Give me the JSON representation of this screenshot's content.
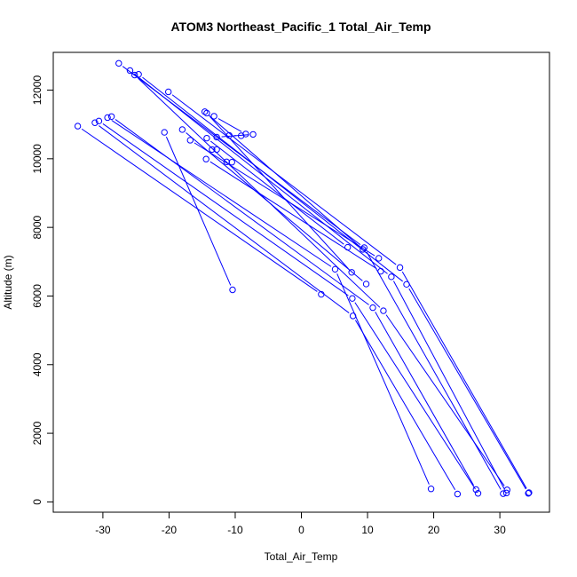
{
  "chart_data": {
    "type": "line",
    "title": "ATOM3 Northeast_Pacific_1 Total_Air_Temp",
    "xlabel": "Total_Air_Temp",
    "ylabel": "Altitude (m)",
    "xlim": [
      -37.5,
      37.5
    ],
    "ylim": [
      -300,
      13100
    ],
    "xticks": [
      -30,
      -20,
      -10,
      0,
      10,
      20,
      30
    ],
    "yticks": [
      0,
      2000,
      4000,
      6000,
      8000,
      10000,
      12000
    ],
    "grid": false,
    "series_color": "#0000ff",
    "series": [
      {
        "points": [
          [
            -33.8,
            10950
          ],
          [
            3.0,
            6050
          ]
        ]
      },
      {
        "points": [
          [
            -31.2,
            11050
          ],
          [
            7.8,
            5420
          ],
          [
            23.6,
            230
          ]
        ]
      },
      {
        "points": [
          [
            -30.6,
            11100
          ],
          [
            7.7,
            5930
          ],
          [
            26.7,
            250
          ]
        ]
      },
      {
        "points": [
          [
            -29.3,
            11200
          ],
          [
            5.1,
            6780
          ],
          [
            19.6,
            380
          ]
        ]
      },
      {
        "points": [
          [
            -28.7,
            11230
          ],
          [
            10.8,
            5660
          ],
          [
            26.4,
            360
          ]
        ]
      },
      {
        "points": [
          [
            -27.6,
            12780
          ],
          [
            9.5,
            7410
          ],
          [
            30.5,
            240
          ]
        ]
      },
      {
        "points": [
          [
            -25.9,
            12570
          ],
          [
            13.6,
            6560
          ],
          [
            31.0,
            260
          ]
        ]
      },
      {
        "points": [
          [
            -25.2,
            12440
          ],
          [
            12.4,
            5570
          ],
          [
            31.1,
            350
          ]
        ]
      },
      {
        "points": [
          [
            -24.6,
            12460
          ],
          [
            15.9,
            6340
          ],
          [
            34.3,
            250
          ]
        ]
      },
      {
        "points": [
          [
            -20.1,
            11950
          ],
          [
            14.9,
            6830
          ],
          [
            34.4,
            270
          ]
        ]
      },
      {
        "points": [
          [
            -20.7,
            10770
          ],
          [
            -10.4,
            6180
          ]
        ]
      },
      {
        "points": [
          [
            -18.0,
            10850
          ],
          [
            9.8,
            6350
          ]
        ]
      },
      {
        "points": [
          [
            -16.8,
            10540
          ],
          [
            11.7,
            7100
          ]
        ]
      },
      {
        "points": [
          [
            -14.6,
            11370
          ],
          [
            9.3,
            7360
          ]
        ]
      },
      {
        "points": [
          [
            -14.3,
            11330
          ],
          [
            7.6,
            6690
          ]
        ]
      },
      {
        "points": [
          [
            -14.3,
            10600
          ],
          [
            7.0,
            7420
          ]
        ]
      },
      {
        "points": [
          [
            -14.4,
            9990
          ],
          [
            12.0,
            6720
          ]
        ]
      },
      {
        "points": [
          [
            -13.5,
            10270
          ],
          [
            -12.8,
            10270
          ]
        ]
      },
      {
        "points": [
          [
            -13.2,
            11240
          ],
          [
            -8.4,
            10720
          ]
        ]
      },
      {
        "points": [
          [
            -12.8,
            10630
          ],
          [
            -7.3,
            10710
          ]
        ]
      },
      {
        "points": [
          [
            -10.9,
            10680
          ],
          [
            -9.1,
            10670
          ]
        ]
      },
      {
        "points": [
          [
            -11.3,
            9910
          ],
          [
            -10.5,
            9900
          ]
        ]
      }
    ]
  }
}
